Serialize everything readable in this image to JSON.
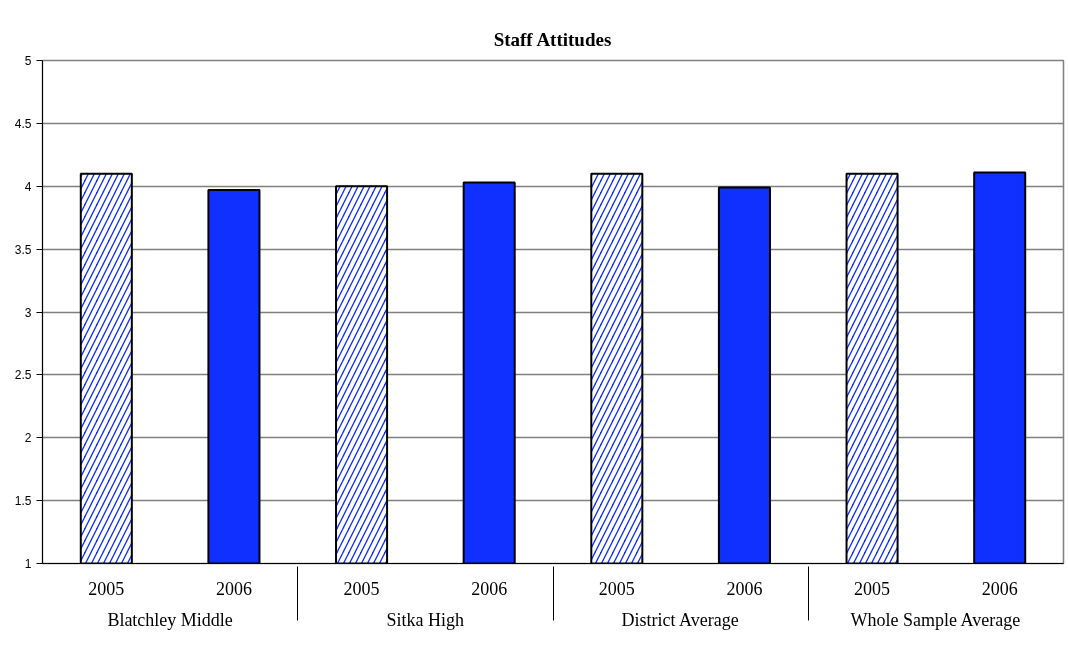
{
  "chart_data": {
    "type": "bar",
    "title": "Staff Attitudes",
    "categories": [
      "2005",
      "2006",
      "2005",
      "2006",
      "2005",
      "2006",
      "2005",
      "2006"
    ],
    "annotations": [
      "Blatchley Middle",
      "Sitka High",
      "District Average",
      "Whole Sample Average"
    ],
    "series": [
      {
        "color": "#1030ff",
        "values": [
          4.1,
          null,
          4.0,
          null,
          4.1,
          null,
          4.1,
          null
        ]
      },
      {
        "color": "#1030ff",
        "values": [
          null,
          3.97,
          null,
          4.03,
          null,
          3.99,
          null,
          4.11
        ]
      }
    ],
    "ylim": [
      1,
      5
    ],
    "yticks": [
      1,
      1.5,
      2,
      2.5,
      3,
      3.5,
      4,
      4.5,
      5
    ],
    "grid": "y"
  }
}
